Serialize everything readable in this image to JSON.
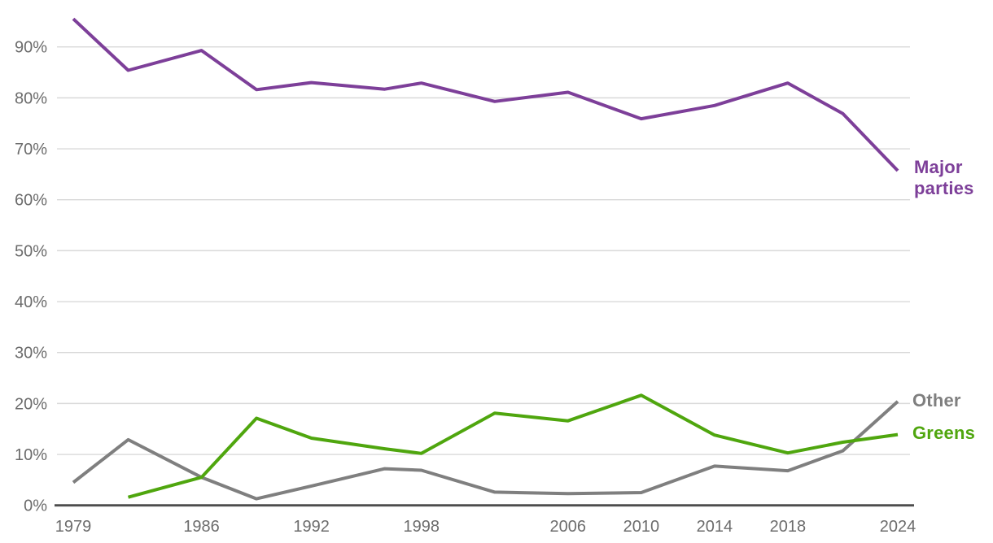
{
  "chart_data": {
    "type": "line",
    "title": "",
    "xlabel": "",
    "ylabel": "",
    "x": [
      1979,
      1982,
      1986,
      1989,
      1992,
      1996,
      1998,
      2002,
      2006,
      2010,
      2014,
      2018,
      2021,
      2024
    ],
    "series": [
      {
        "name": "major-parties",
        "label": "Major parties",
        "color": "#7d3f99",
        "values": [
          95.5,
          85.4,
          89.3,
          81.6,
          83.0,
          81.7,
          82.9,
          79.3,
          81.1,
          75.9,
          78.5,
          82.9,
          76.9,
          65.7
        ]
      },
      {
        "name": "other",
        "label": "Other",
        "color": "#7f7f7f",
        "values": [
          4.5,
          12.9,
          5.5,
          1.3,
          3.8,
          7.2,
          6.9,
          2.6,
          2.3,
          2.5,
          7.7,
          6.8,
          10.7,
          20.4
        ]
      },
      {
        "name": "greens",
        "label": "Greens",
        "color": "#4fa60e",
        "values": [
          null,
          1.6,
          5.5,
          17.1,
          13.2,
          11.1,
          10.2,
          18.1,
          16.6,
          21.6,
          13.8,
          10.3,
          12.4,
          13.9
        ]
      }
    ],
    "xlim": [
      1979,
      2024
    ],
    "ylim": [
      0,
      100
    ],
    "grid": true,
    "legend_position": "right-end-labels",
    "x_tick_years": [
      1979,
      1986,
      1992,
      1998,
      2006,
      2010,
      2014,
      2018,
      2024
    ],
    "y_tick_values": [
      90,
      80,
      70,
      60,
      50,
      40,
      30,
      20,
      10,
      0
    ],
    "y_tick_suffix": "%",
    "colors": {
      "gridline": "#d9d9d9",
      "axis_line": "#4d4d4d",
      "tick_text": "#6c6c6c",
      "background": "#ffffff"
    }
  }
}
